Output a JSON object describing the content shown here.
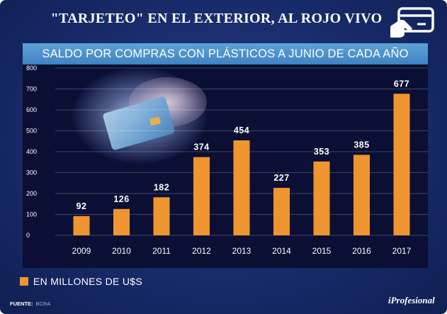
{
  "header": {
    "title": "\"TARJETEO\" EN EL EXTERIOR, AL ROJO VIVO",
    "icon": "credit-card-hand-icon"
  },
  "subtitle": "SALDO POR COMPRAS CON PLÁSTICOS A JUNIO DE CADA  AÑO",
  "chart_data": {
    "type": "bar",
    "title": "SALDO POR COMPRAS CON PLÁSTICOS A JUNIO DE CADA  AÑO",
    "categories": [
      "2009",
      "2010",
      "2011",
      "2012",
      "2013",
      "2014",
      "2015",
      "2016",
      "2017"
    ],
    "values": [
      92,
      126,
      182,
      374,
      454,
      227,
      353,
      385,
      677
    ],
    "yticks": [
      "0",
      "100",
      "200",
      "300",
      "400",
      "500",
      "600",
      "700",
      "800"
    ],
    "ylim": [
      0,
      800
    ],
    "xlabel": "",
    "ylabel": "",
    "grid": true,
    "bar_color": "#ee9530",
    "series_name": "EN MILLONES DE U$S"
  },
  "legend": {
    "label": "EN MILLONES DE U$S"
  },
  "footer": {
    "source_label": "FUENTE:",
    "source_value": "BCRA",
    "logo": "iProfesional"
  },
  "colors": {
    "background": "#182b6b",
    "plot_background": "#0a0f33",
    "subtitle_bar": "#4a8fcc",
    "bar": "#ee9530"
  }
}
